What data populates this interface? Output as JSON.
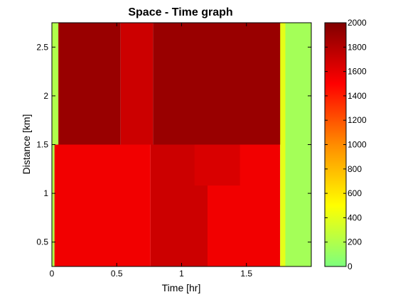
{
  "chart_data": {
    "type": "heatmap",
    "title": "Space - Time graph",
    "xlabel": "Time [hr]",
    "ylabel": "Distance [km]",
    "xlim": [
      0,
      2.0
    ],
    "ylim": [
      0.25,
      2.75
    ],
    "xticks": [
      0,
      0.5,
      1,
      1.5
    ],
    "xtick_labels": [
      "0",
      "0.5",
      "1",
      "1.5"
    ],
    "yticks": [
      0.5,
      1,
      1.5,
      2,
      2.5
    ],
    "ytick_labels": [
      "0.5",
      "1",
      "1.5",
      "2",
      "2.5"
    ],
    "colorbar": {
      "min": 0,
      "max": 2000,
      "ticks": [
        0,
        200,
        400,
        600,
        800,
        1000,
        1200,
        1400,
        1600,
        1800,
        2000
      ],
      "tick_labels": [
        "0",
        "200",
        "400",
        "600",
        "800",
        "1000",
        "1200",
        "1400",
        "1600",
        "1800",
        "2000"
      ],
      "colormap": [
        "#7dff7d",
        "#ffff00",
        "#ff8c00",
        "#ff0000",
        "#800000"
      ]
    },
    "cells": [
      {
        "t0": 0.0,
        "t1": 0.05,
        "d0": 0.25,
        "d1": 2.75,
        "value": 200
      },
      {
        "t0": 0.05,
        "t1": 0.53,
        "d0": 1.5,
        "d1": 2.75,
        "value": 1900
      },
      {
        "t0": 0.53,
        "t1": 0.78,
        "d0": 1.5,
        "d1": 2.75,
        "value": 1700
      },
      {
        "t0": 0.78,
        "t1": 1.78,
        "d0": 1.5,
        "d1": 2.75,
        "value": 1900
      },
      {
        "t0": 0.02,
        "t1": 0.76,
        "d0": 0.25,
        "d1": 1.5,
        "value": 1550
      },
      {
        "t0": 0.76,
        "t1": 1.2,
        "d0": 0.25,
        "d1": 1.5,
        "value": 1700
      },
      {
        "t0": 1.2,
        "t1": 1.76,
        "d0": 0.25,
        "d1": 1.5,
        "value": 1550
      },
      {
        "t0": 1.1,
        "t1": 1.45,
        "d0": 1.08,
        "d1": 1.5,
        "value": 1650
      },
      {
        "t0": 1.76,
        "t1": 1.8,
        "d0": 0.25,
        "d1": 2.75,
        "value": 400
      },
      {
        "t0": 1.8,
        "t1": 2.0,
        "d0": 0.25,
        "d1": 2.75,
        "value": 150
      }
    ]
  }
}
